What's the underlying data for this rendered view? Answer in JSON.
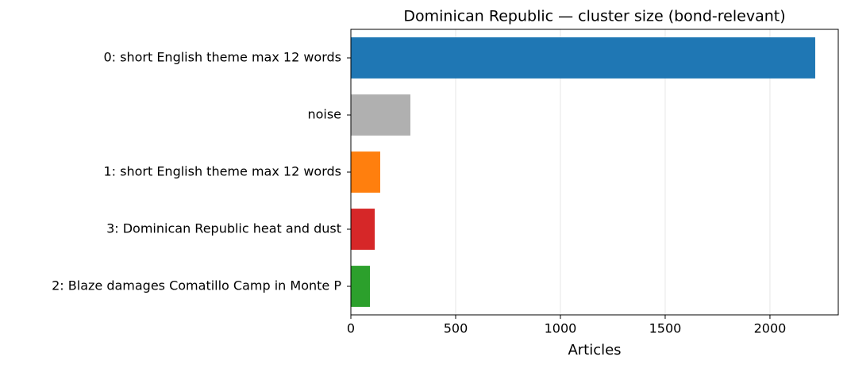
{
  "chart_data": {
    "type": "barh",
    "title": "Dominican Republic — cluster size (bond-relevant)",
    "xlabel": "Articles",
    "categories": [
      "0: short English theme max 12 words",
      "noise",
      "1: short English theme max 12 words",
      "3: Dominican Republic heat and dust",
      "2: Blaze damages Comatillo Camp in Monte P"
    ],
    "values": [
      2216,
      284,
      140,
      114,
      91
    ],
    "colors": [
      "#1f77b4",
      "#b0b0b0",
      "#ff7f0e",
      "#d62728",
      "#2ca02c"
    ],
    "xlim": [
      0,
      2326
    ],
    "xticks": [
      0,
      500,
      1000,
      1500,
      2000
    ],
    "grid": true
  }
}
